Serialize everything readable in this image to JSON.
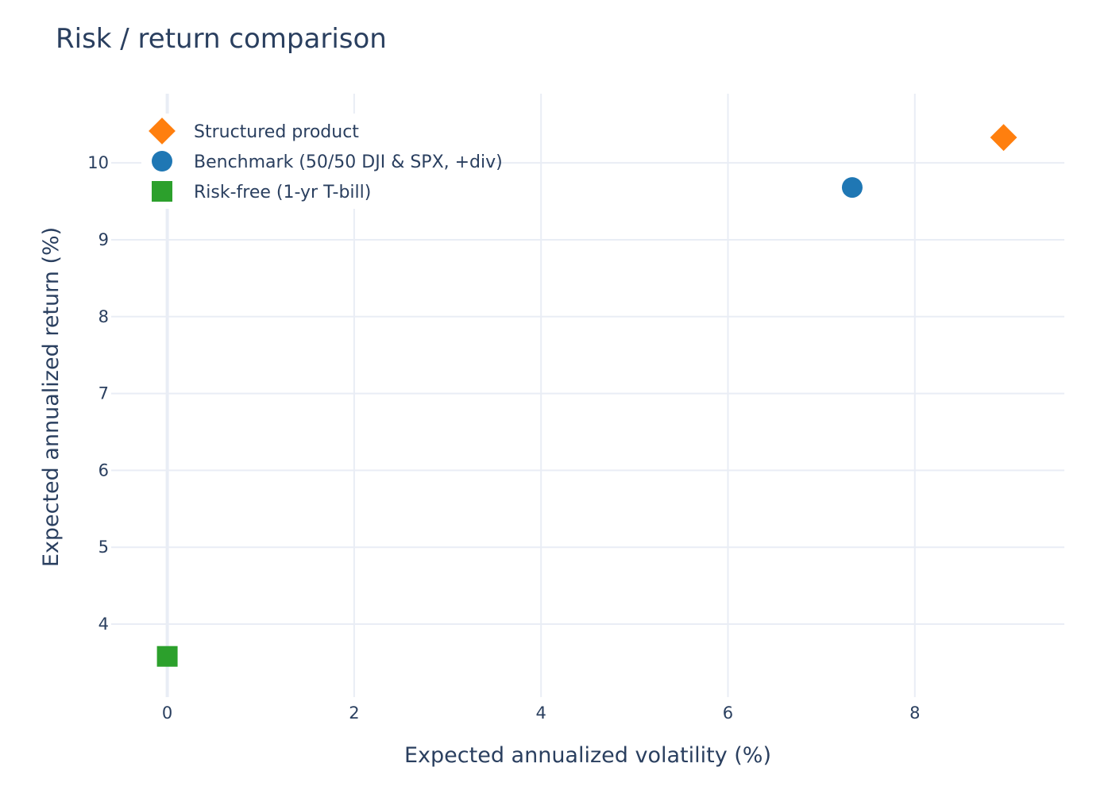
{
  "chart_data": {
    "type": "scatter",
    "title": "Risk / return comparison",
    "xlabel": "Expected annualized volatility (%)",
    "ylabel": "Expected annualized return (%)",
    "xlim": [
      -0.6,
      9.6
    ],
    "ylim": [
      3.05,
      10.9
    ],
    "x_ticks": [
      0,
      2,
      4,
      6,
      8
    ],
    "y_ticks": [
      4,
      5,
      6,
      7,
      8,
      9,
      10
    ],
    "grid": true,
    "legend_position": "top-left",
    "series": [
      {
        "name": "Structured product",
        "marker": "diamond",
        "color": "#ff7f0e",
        "points": [
          {
            "x": 8.95,
            "y": 10.33
          }
        ]
      },
      {
        "name": "Benchmark (50/50 DJI & SPX, +div)",
        "marker": "circle",
        "color": "#1f77b4",
        "points": [
          {
            "x": 7.33,
            "y": 9.68
          }
        ]
      },
      {
        "name": "Risk-free (1-yr T-bill)",
        "marker": "square",
        "color": "#2ca02c",
        "points": [
          {
            "x": 0.0,
            "y": 3.58
          }
        ]
      }
    ]
  }
}
